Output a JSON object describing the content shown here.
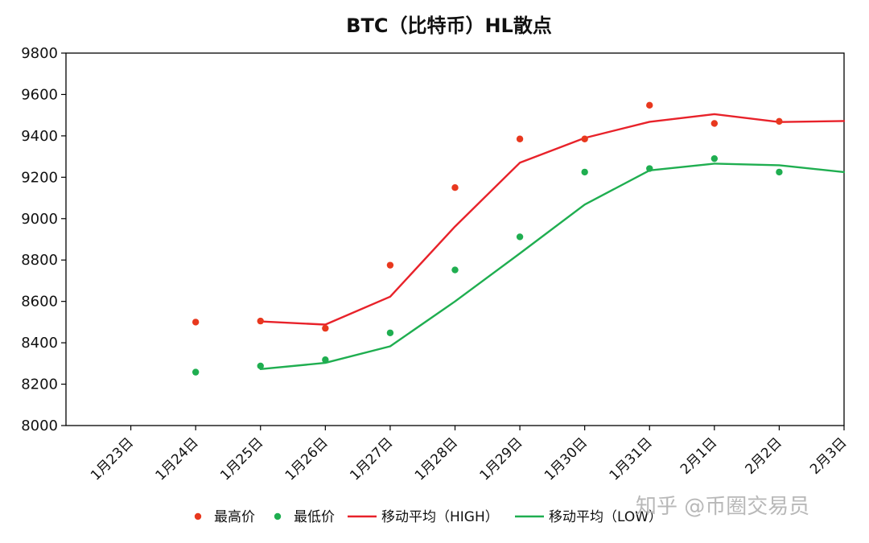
{
  "chart_data": {
    "type": "scatter",
    "title": "BTC（比特币）HL散点",
    "xlabel": "",
    "ylabel": "",
    "categories": [
      "1月23日",
      "1月24日",
      "1月25日",
      "1月26日",
      "1月27日",
      "1月28日",
      "1月29日",
      "1月30日",
      "1月31日",
      "2月1日",
      "2月2日",
      "2月3日"
    ],
    "ylim": [
      8000,
      9800
    ],
    "yticks": [
      8000,
      8200,
      8400,
      8600,
      8800,
      9000,
      9200,
      9400,
      9600,
      9800
    ],
    "grid": false,
    "legend_position": "bottom",
    "series": [
      {
        "name": "最高价",
        "kind": "scatter",
        "color": "#e8381e",
        "values": [
          null,
          8500,
          8505,
          8470,
          8775,
          9150,
          9385,
          9385,
          9548,
          9460,
          9470,
          null
        ]
      },
      {
        "name": "最低价",
        "kind": "scatter",
        "color": "#1fae50",
        "values": [
          null,
          8258,
          8288,
          8318,
          8448,
          8752,
          8912,
          9225,
          9242,
          9290,
          9225,
          null
        ]
      },
      {
        "name": "移动平均（HIGH）",
        "kind": "line",
        "color": "#e8222a",
        "values": [
          null,
          null,
          8503,
          8488,
          8623,
          8962,
          9270,
          9390,
          9468,
          9505,
          9467,
          9472
        ]
      },
      {
        "name": "移动平均（LOW）",
        "kind": "line",
        "color": "#1fae50",
        "values": [
          null,
          null,
          8273,
          8303,
          8383,
          8600,
          8832,
          9068,
          9233,
          9266,
          9258,
          9225
        ]
      }
    ]
  },
  "watermark": "知乎 @币圈交易员"
}
